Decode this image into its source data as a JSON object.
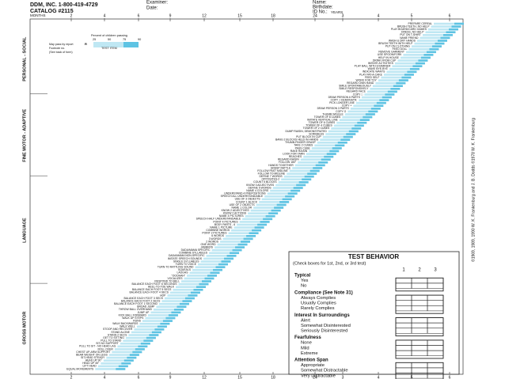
{
  "header": {
    "publisher": "DDM, INC.  1-800-419-4729",
    "catalog": "CATALOG #2115",
    "examiner": "Examiner:",
    "date": "Date:",
    "name": "Name:",
    "birthdate": "Birthdate:",
    "id": "ID No.:"
  },
  "age_scale": {
    "months_label": "MONTHS",
    "years_label": "YEARS",
    "ages": [
      "2",
      "4",
      "6",
      "9",
      "12",
      "15",
      "18",
      "24",
      "3",
      "4",
      "5",
      "6"
    ]
  },
  "legend": {
    "title": "Percent of children passing",
    "percents": [
      "25",
      "50",
      "75",
      "90"
    ],
    "item": "TEST ITEM",
    "report": "May pass by report",
    "footnote": "Footnote no.",
    "see_back": "(See back of form)",
    "r": "R"
  },
  "sectors": [
    {
      "label": "PERSONAL - SOCIAL",
      "items": [
        "PREPARE CEREAL",
        "BRUSH TEETH, NO HELP",
        "PLAY BOARD/CARD GAMES",
        "DRESS, NO HELP",
        "PUT ON T-SHIRT",
        "NAME FRIEND",
        "WASH & DRY HANDS",
        "BRUSH TEETH WITH HELP",
        "PUT ON CLOTHING",
        "FEED DOLL",
        "REMOVE GARMENT",
        "USE SPOON/FORK",
        "HELP IN HOUSE",
        "DRINK FROM CUP",
        "IMITATE ACTIVITIES",
        "PLAY BALL WITH EXAMINER",
        "WAVE BYE-BYE",
        "INDICATE WANTS",
        "PLAY PAT-A-CAKE",
        "FEED SELF",
        "WORK FOR TOY",
        "REGARD OWN HAND",
        "SMILE SPONTANEOUSLY",
        "SMILE RESPONSIVELY",
        "REGARD FACE"
      ]
    },
    {
      "label": "FINE MOTOR - ADAPTIVE",
      "items": [
        "COPY □",
        "DRAW PERSON 6 PARTS",
        "COPY + DEMONSTR.",
        "PICK LONGER LINE",
        "COPY +",
        "DRAW PERSON 3 PARTS",
        "COPY O",
        "THUMB WIGGLE",
        "TOWER OF 8 CUBES",
        "IMITATE VERTICAL LINE",
        "TOWER OF 6 CUBES",
        "TOWER OF 4 CUBES",
        "TOWER OF 2 CUBES",
        "DUMP RAISIN, DEMONSTRATED",
        "SCRIBBLES",
        "PUT BLOCK IN CUP",
        "BANG 2 BLOCKS HELD IN HANDS",
        "THUMB-FINGER GRASP",
        "TAKE 2 CUBES",
        "PASS CUBE",
        "RAKE RAISIN",
        "LOOK FOR YARN",
        "REACHES",
        "REGARD RAISIN",
        "FOLLOW 180°",
        "HANDS TOGETHER",
        "GRASP RATTLE",
        "FOLLOW PAST MIDLINE",
        "FOLLOW TO MIDLINE"
      ]
    },
    {
      "label": "LANGUAGE",
      "items": [
        "DEFINE 7 WORDS",
        "OPPOSITES-2",
        "COUNT 5 BLOCKS",
        "KNOW 3 ADJECTIVES",
        "DEFINE 5 WORDS",
        "NAME 4 COLORS",
        "UNDERSTAND 4 PREPOSITIONS",
        "SPEECH ALL UNDERSTANDABLE",
        "USE OF 3 OBJECTS",
        "COUNT 1 BLOCK",
        "USE OF 2 OBJECTS",
        "NAME 1 COLOR",
        "KNOW 2 ADJECTIVES",
        "KNOW 2 ACTIONS",
        "NAME 4 PICTURES",
        "SPEECH HALF UNDERSTANDABLE",
        "POINT 4 PICTURES",
        "BODY PARTS - 6",
        "NAME 1 PICTURE",
        "COMBINE WORDS",
        "POINT 2 PICTURES",
        "6 WORDS",
        "3 WORDS",
        "2 WORDS",
        "ONE WORD",
        "JABBERS",
        "DADA/MAMA SPECIFIC",
        "COMBINE SYLLABLES",
        "DADA/MAMA NON-SPECIFIC",
        "IMITATE SPEECH SOUNDS",
        "SINGLE SYLLABLES",
        "TURN TO VOICE",
        "TURN TO RATTLING SOUND",
        "SQUEALS",
        "LAUGHS",
        "\"OOOHAH\"",
        "VOCALIZES",
        "RESPOND TO BELL"
      ]
    },
    {
      "label": "GROSS MOTOR",
      "items": [
        "BALANCE EACH FOOT 6 SECONDS",
        "HEEL-TO-TOE WALK",
        "BALANCE EACH FOOT 5 SECS",
        "BALANCE EACH FOOT 4 SECS",
        "HOP",
        "BALANCE EACH FOOT 3 SECS",
        "BALANCE EACH FOOT 2 SECS",
        "BALANCE EACH FOOT 1 SECOND",
        "BROAD JUMP",
        "THROW BALL OVERHAND",
        "JUMP UP",
        "KICK BALL FORWARD",
        "WALK UP STEPS",
        "RUNS",
        "WALK BACKWARDS",
        "WALK WELL",
        "STOOP AND RECOVER",
        "STAND ALONE",
        "STAND-2 SECS",
        "GET TO SITTING",
        "PULL TO STAND",
        "SIT-NO SUPPORT",
        "PULL TO SIT - NO HEAD LAG",
        "ROLL OVER",
        "CHEST UP-ARM SUPPORT",
        "BEAR WEIGHT ON LEGS",
        "SIT-HEAD STEADY",
        "HEAD UP 90°",
        "HEAD UP 45°",
        "LIFT HEAD",
        "EQUAL MOVEMENTS"
      ]
    }
  ],
  "test_behavior": {
    "title": "TEST BEHAVIOR",
    "note": "(Check boxes for 1st, 2nd, or 3rd test)",
    "columns": [
      "1",
      "2",
      "3"
    ],
    "groups": [
      {
        "title": "Typical",
        "options": [
          "Yes",
          "No"
        ]
      },
      {
        "title": "Compliance (See Note 31)",
        "options": [
          "Always Complies",
          "Usually Complies",
          "Rarely Complies"
        ]
      },
      {
        "title": "Interest In Surroundings",
        "options": [
          "Alert",
          "Somewhat Disinterested",
          "Seriously Disinterested"
        ]
      },
      {
        "title": "Fearfulness",
        "options": [
          "None",
          "Mild",
          "Extreme"
        ]
      },
      {
        "title": "Attention Span",
        "options": [
          "Appropriate",
          "Somewhat Distractable",
          "Very Distractable"
        ]
      }
    ]
  },
  "copyright": "©1969, 1989, 1990 W. K. Frankenburg and J. B. Dodds  ©1978 W. K. Frankenburg"
}
